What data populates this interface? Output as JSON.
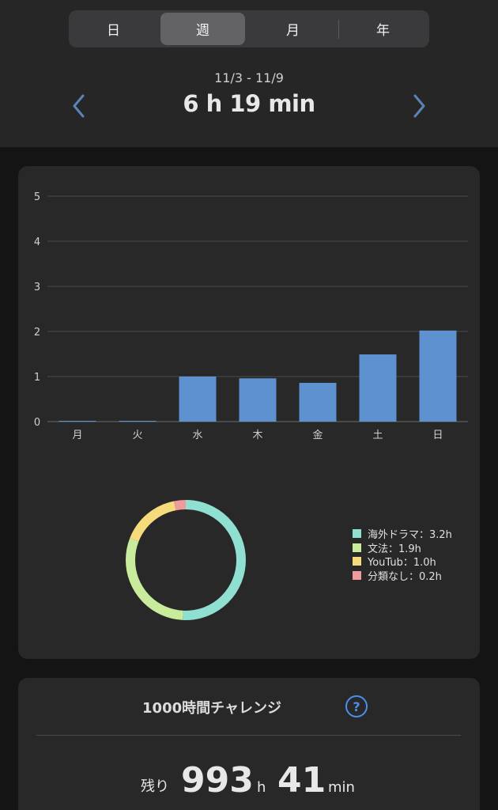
{
  "tabs": [
    {
      "label": "日",
      "active": false
    },
    {
      "label": "週",
      "active": true
    },
    {
      "label": "月",
      "active": false
    },
    {
      "label": "年",
      "active": false
    }
  ],
  "period": {
    "range": "11/3 - 11/9",
    "total": "6 h 19 min"
  },
  "colors": {
    "bar": "#5e91cf",
    "accent": "#4a8ef0",
    "nav_arrow": "#5a84b8"
  },
  "chart_data": [
    {
      "type": "bar",
      "categories": [
        "月",
        "火",
        "水",
        "木",
        "金",
        "土",
        "日"
      ],
      "values": [
        0.01,
        0.01,
        1.0,
        0.96,
        0.86,
        1.49,
        2.02
      ],
      "y_ticks": [
        "0",
        "1",
        "2",
        "3",
        "4",
        "5"
      ],
      "ylim": [
        0,
        5
      ],
      "grid": true
    },
    {
      "type": "pie",
      "style": "donut",
      "slices": [
        {
          "label": "海外ドラマ：3.2h",
          "value": 3.2,
          "color": "#8fe0d0"
        },
        {
          "label": "文法：1.9h",
          "value": 1.9,
          "color": "#c9ec9c"
        },
        {
          "label": "YouTub：1.0h",
          "value": 1.0,
          "color": "#f6db7c"
        },
        {
          "label": "分類なし：0.2h",
          "value": 0.2,
          "color": "#ef9a9c"
        }
      ],
      "legend": "right"
    }
  ],
  "challenge": {
    "title": "1000時間チャレンジ",
    "help_icon": "?",
    "remaining_label": "残り",
    "hours": "993",
    "hours_unit": "h",
    "minutes": "41",
    "minutes_unit": "min"
  }
}
